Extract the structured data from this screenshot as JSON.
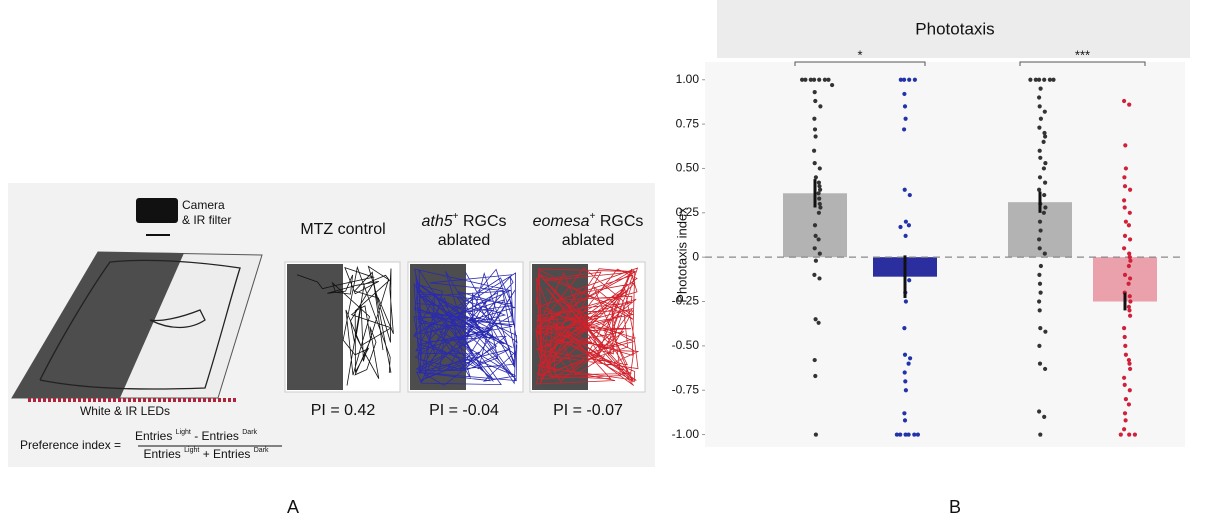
{
  "panel_a": {
    "camera": [
      "Camera",
      "& IR filter"
    ],
    "leds": "White & IR LEDs",
    "formula": {
      "lhs": "Preference index =",
      "numerator": [
        "Entries",
        "Light",
        "-",
        "Entries",
        "Dark"
      ],
      "denominator": [
        "Entries",
        "Light",
        "+",
        "Entries",
        "Dark"
      ]
    },
    "conditions": [
      {
        "title": [
          "MTZ control"
        ],
        "pi": "PI = 0.42"
      },
      {
        "gene": "ath5",
        "sup": "+",
        "rest": "RGCs",
        "line2": "ablated",
        "pi": "PI = -0.04"
      },
      {
        "gene": "eomesa",
        "sup": "+",
        "rest": "RGCs",
        "line2": "ablated",
        "pi": "PI = -0.07"
      }
    ],
    "label": "A"
  },
  "chart_data": {
    "type": "bar",
    "title": "Phototaxis",
    "y_label": "Phototaxis index",
    "label": "B",
    "ylim": [
      -1.07,
      1.1
    ],
    "yticks": [
      {
        "value": 1,
        "label": "1.00"
      },
      0.75,
      {
        "value": 0.5,
        "label": "0.50"
      },
      0.25,
      0,
      -0.25,
      {
        "value": -0.5,
        "label": "-0.50"
      },
      -0.75,
      {
        "value": -1,
        "label": "-1.00"
      }
    ],
    "zero_line": true,
    "bars": {
      "values": [
        0.36,
        -0.11,
        0.31,
        -0.25
      ],
      "errors": [
        0.08,
        0.12,
        0.06,
        0.05
      ],
      "colors": [
        "#b3b3b3",
        "#2b2e9e",
        "#b3b3b3",
        "#eba1ab"
      ]
    },
    "points": [
      {
        "color": "#333333",
        "values": [
          1,
          1,
          1,
          1,
          1,
          1,
          1,
          0.97,
          0.93,
          0.88,
          0.85,
          0.78,
          0.72,
          0.68,
          0.6,
          0.53,
          0.5,
          0.45,
          0.42,
          0.4,
          0.38,
          0.36,
          0.33,
          0.3,
          0.28,
          0.25,
          0.18,
          0.12,
          0.1,
          0.05,
          0.02,
          -0.02,
          -0.1,
          -0.12,
          -0.35,
          -0.37,
          -0.58,
          -0.67,
          -1
        ]
      },
      {
        "color": "#2233aa",
        "values": [
          1,
          1,
          1,
          1,
          0.92,
          0.85,
          0.78,
          0.72,
          0.38,
          0.35,
          0.2,
          0.18,
          0.17,
          0.12,
          -0.1,
          -0.13,
          -0.2,
          -0.25,
          -0.4,
          -0.55,
          -0.57,
          -0.6,
          -0.65,
          -0.7,
          -0.75,
          -0.88,
          -0.92,
          -1,
          -1,
          -1,
          -1,
          -1,
          -1
        ]
      },
      {
        "color": "#333333",
        "values": [
          1,
          1,
          1,
          1,
          1,
          1,
          0.95,
          0.9,
          0.85,
          0.82,
          0.78,
          0.73,
          0.7,
          0.68,
          0.65,
          0.6,
          0.56,
          0.53,
          0.5,
          0.45,
          0.42,
          0.38,
          0.35,
          0.3,
          0.28,
          0.25,
          0.2,
          0.15,
          0.1,
          0.05,
          0.02,
          -0.05,
          -0.1,
          -0.15,
          -0.2,
          -0.25,
          -0.3,
          -0.4,
          -0.42,
          -0.5,
          -0.6,
          -0.63,
          -0.87,
          -0.9,
          -1
        ]
      },
      {
        "color": "#d0203a",
        "values": [
          0.88,
          0.86,
          0.63,
          0.5,
          0.45,
          0.4,
          0.38,
          0.32,
          0.28,
          0.25,
          0.2,
          0.18,
          0.12,
          0.1,
          0.05,
          0.02,
          0,
          -0.02,
          -0.05,
          -0.1,
          -0.12,
          -0.15,
          -0.2,
          -0.22,
          -0.25,
          -0.28,
          -0.3,
          -0.33,
          -0.4,
          -0.45,
          -0.5,
          -0.55,
          -0.58,
          -0.6,
          -0.63,
          -0.68,
          -0.72,
          -0.75,
          -0.8,
          -0.83,
          -0.88,
          -0.92,
          -0.97,
          -1,
          -1,
          -1
        ]
      }
    ],
    "annotations": [
      "*",
      "***"
    ]
  }
}
